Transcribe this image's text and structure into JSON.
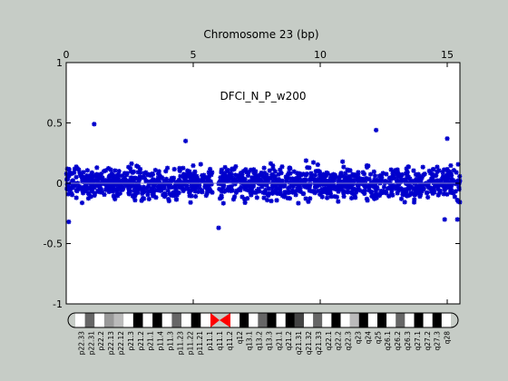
{
  "chart_data": {
    "type": "scatter",
    "title": "Chromosome 23 (bp)",
    "annotation": "DFCI_N_P_w200",
    "x_ticks": [
      "0",
      "5",
      "10",
      "15"
    ],
    "y_ticks": [
      "1",
      "0.5",
      "0",
      "-0.5",
      "-1"
    ],
    "xlim": [
      0,
      15.5
    ],
    "ylim": [
      -1,
      1
    ],
    "grid": false,
    "baseline_y": 0,
    "series": [
      {
        "color": "#0000cc",
        "marker": "asterisk",
        "band_center": 0,
        "band_half_width": 0.22,
        "outliers": [
          {
            "x": 1.1,
            "y": 0.49
          },
          {
            "x": 12.2,
            "y": 0.44
          },
          {
            "x": 4.7,
            "y": 0.35
          },
          {
            "x": 15.0,
            "y": 0.37
          },
          {
            "x": 14.9,
            "y": -0.3
          },
          {
            "x": 6.0,
            "y": -0.37
          },
          {
            "x": 0.1,
            "y": -0.32
          },
          {
            "x": 15.4,
            "y": -0.3
          }
        ],
        "gap": [
          5.75,
          6.0
        ]
      }
    ],
    "colors": {
      "marker": "#0000cc",
      "baseline": "#8888cc",
      "background": "#c6ccc6",
      "plot_bg": "#ffffff"
    }
  },
  "ideogram": {
    "bands": [
      "p22.33",
      "p22.31",
      "p22.2",
      "p22.13",
      "p22.12",
      "p21.3",
      "p21.2",
      "p21.1",
      "p11.4",
      "p11.3",
      "p11.23",
      "p11.22",
      "p11.21",
      "p11.1",
      "q11.1",
      "q11.2",
      "q12",
      "q13.1",
      "q13.2",
      "q13.3",
      "q21.1",
      "q21.2",
      "q21.31",
      "q21.32",
      "q21.33",
      "q22.1",
      "q22.2",
      "q22.3",
      "q23",
      "q24",
      "q25",
      "q26.1",
      "q26.2",
      "q26.3",
      "q27.1",
      "q27.2",
      "q27.3",
      "q28"
    ]
  }
}
